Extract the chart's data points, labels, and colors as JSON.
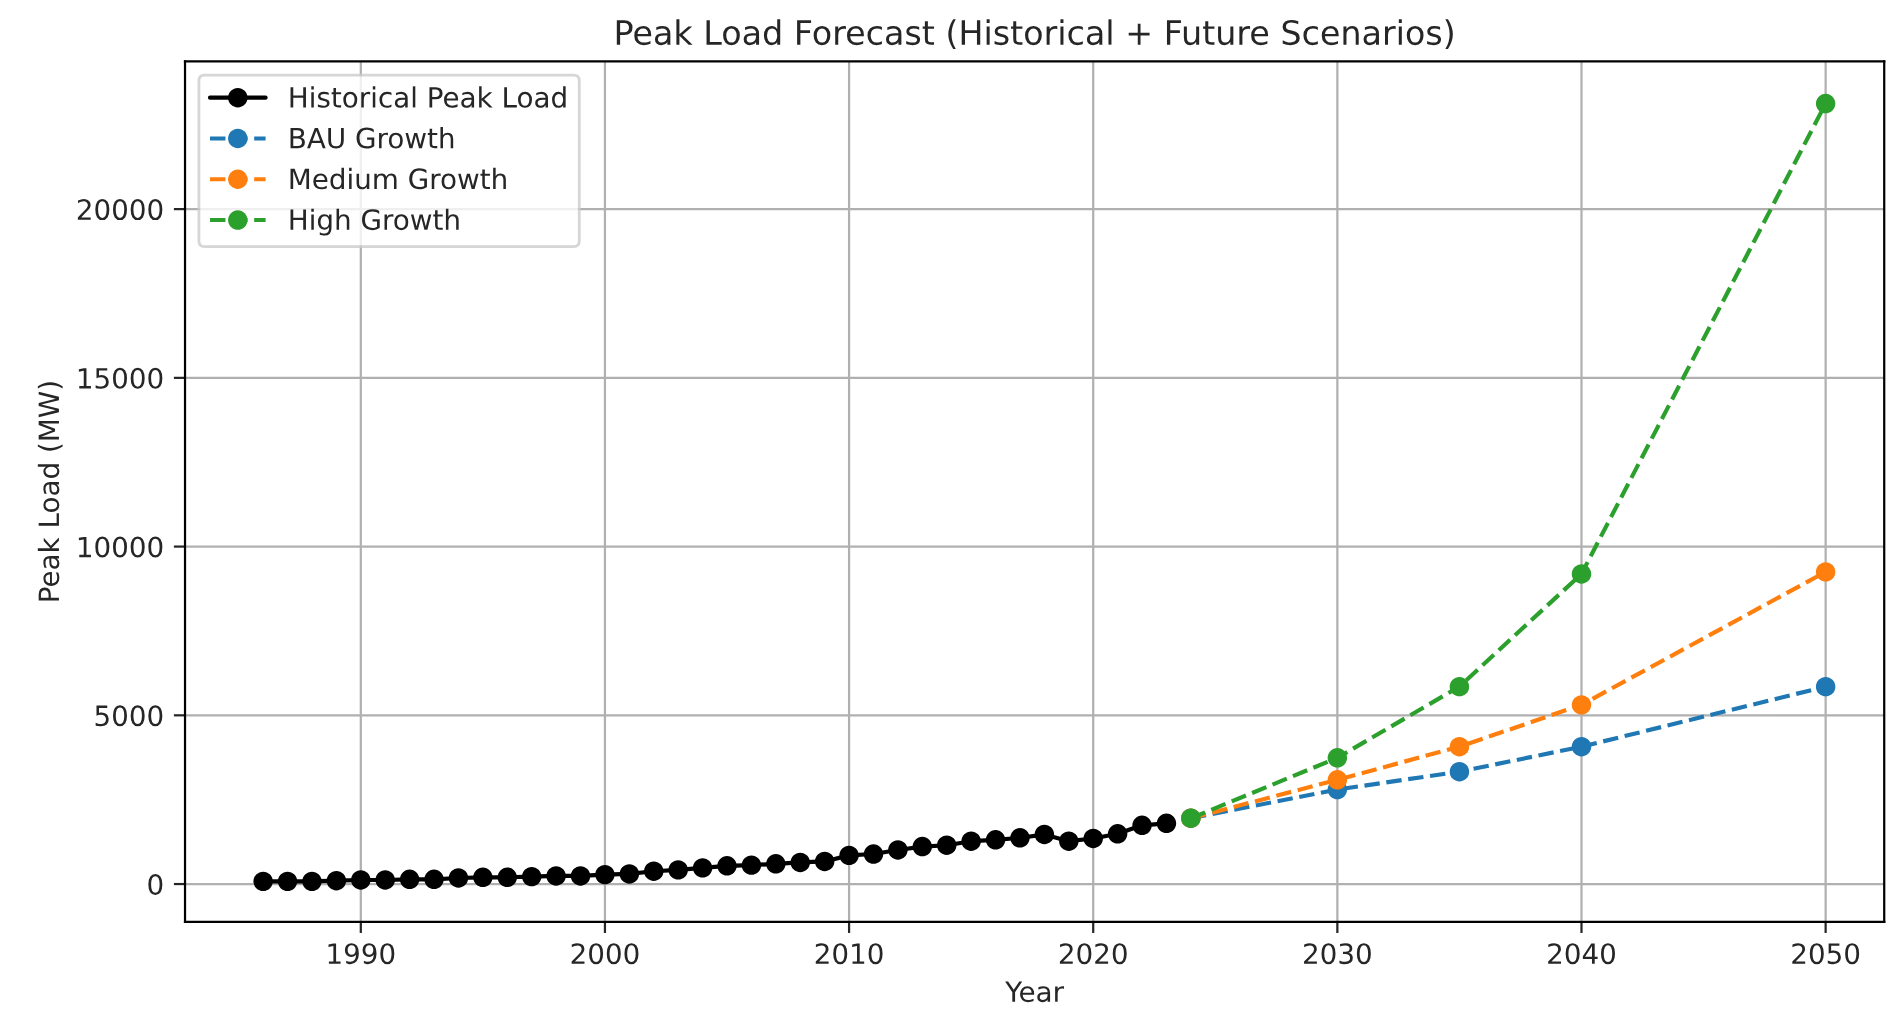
{
  "chart_data": {
    "type": "line",
    "title": "Peak Load Forecast (Historical + Future Scenarios)",
    "xlabel": "Year",
    "ylabel": "Peak Load (MW)",
    "series": [
      {
        "name": "Historical Peak Load",
        "color": "#000000",
        "line_style": "solid",
        "x": [
          1986,
          1987,
          1988,
          1989,
          1990,
          1991,
          1992,
          1993,
          1994,
          1995,
          1996,
          1997,
          1998,
          1999,
          2000,
          2001,
          2002,
          2003,
          2004,
          2005,
          2006,
          2007,
          2008,
          2009,
          2010,
          2011,
          2012,
          2013,
          2014,
          2015,
          2016,
          2017,
          2018,
          2019,
          2020,
          2021,
          2022,
          2023
        ],
        "values": [
          80,
          80,
          80,
          100,
          120,
          120,
          140,
          140,
          180,
          200,
          200,
          220,
          240,
          240,
          280,
          300,
          380,
          420,
          480,
          540,
          560,
          600,
          640,
          670,
          850,
          890,
          1010,
          1110,
          1150,
          1270,
          1310,
          1370,
          1470,
          1270,
          1350,
          1490,
          1740,
          1800
        ]
      },
      {
        "name": "BAU Growth",
        "color": "#1f77b4",
        "line_style": "dashed",
        "x": [
          2024,
          2030,
          2035,
          2040,
          2050
        ],
        "values": [
          1950,
          2800,
          3330,
          4070,
          5850
        ]
      },
      {
        "name": "Medium Growth",
        "color": "#ff7f0e",
        "line_style": "dashed",
        "x": [
          2024,
          2030,
          2035,
          2040,
          2050
        ],
        "values": [
          1950,
          3090,
          4070,
          5310,
          9250
        ]
      },
      {
        "name": "High Growth",
        "color": "#2ca02c",
        "line_style": "dashed",
        "x": [
          2024,
          2030,
          2035,
          2040,
          2050
        ],
        "values": [
          1950,
          3740,
          5850,
          9190,
          23130
        ]
      }
    ],
    "xlim": [
      1982.8,
      2052.4
    ],
    "xticks": [
      1990,
      2000,
      2010,
      2020,
      2030,
      2040,
      2050
    ],
    "ylim": [
      -1120,
      24380
    ],
    "yticks": [
      0,
      5000,
      10000,
      15000,
      20000
    ],
    "grid": true,
    "legend": "top left",
    "marker": "circle"
  }
}
